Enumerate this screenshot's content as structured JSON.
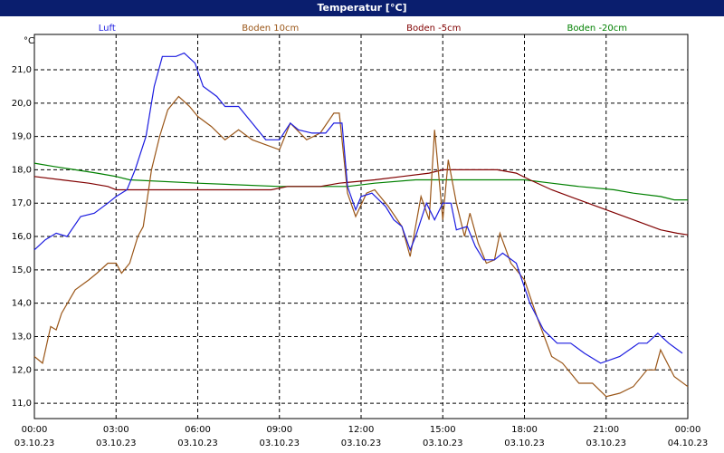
{
  "chart_data": {
    "type": "line",
    "title": "Temperatur [°C]",
    "y_unit": "°C",
    "xlim": [
      0,
      24
    ],
    "ylim": [
      10.54,
      22.06
    ],
    "grid": true,
    "xticks": [
      {
        "value": 0,
        "label": "00:00",
        "date": "03.10.23"
      },
      {
        "value": 3,
        "label": "03:00",
        "date": "03.10.23"
      },
      {
        "value": 6,
        "label": "06:00",
        "date": "03.10.23"
      },
      {
        "value": 9,
        "label": "09:00",
        "date": "03.10.23"
      },
      {
        "value": 12,
        "label": "12:00",
        "date": "03.10.23"
      },
      {
        "value": 15,
        "label": "15:00",
        "date": "03.10.23"
      },
      {
        "value": 18,
        "label": "18:00",
        "date": "03.10.23"
      },
      {
        "value": 21,
        "label": "21:00",
        "date": "03.10.23"
      },
      {
        "value": 24,
        "label": "00:00",
        "date": "04.10.23"
      }
    ],
    "yticks": [
      {
        "value": 11,
        "label": "11,0"
      },
      {
        "value": 12,
        "label": "12,0"
      },
      {
        "value": 13,
        "label": "13,0"
      },
      {
        "value": 14,
        "label": "14,0"
      },
      {
        "value": 15,
        "label": "15,0"
      },
      {
        "value": 16,
        "label": "16,0"
      },
      {
        "value": 17,
        "label": "17,0"
      },
      {
        "value": 18,
        "label": "18,0"
      },
      {
        "value": 19,
        "label": "19,0"
      },
      {
        "value": 20,
        "label": "20,0"
      },
      {
        "value": 21,
        "label": "21,0"
      }
    ],
    "series": [
      {
        "name": "Luft",
        "color": "#1c1ce0",
        "x": [
          0,
          0.4,
          0.8,
          1.2,
          1.7,
          2.2,
          2.7,
          3,
          3.4,
          3.7,
          4.1,
          4.4,
          4.7,
          5.2,
          5.5,
          5.9,
          6.2,
          6.7,
          7,
          7.5,
          8,
          8.5,
          9,
          9.4,
          9.7,
          10.2,
          10.7,
          11,
          11.3,
          11.5,
          11.8,
          12,
          12.4,
          12.9,
          13.2,
          13.5,
          13.8,
          14,
          14.4,
          14.7,
          15,
          15.3,
          15.5,
          15.9,
          16.2,
          16.5,
          16.9,
          17.2,
          17.7,
          18.2,
          18.7,
          19.2,
          19.7,
          20.2,
          20.8,
          21.5,
          22.2,
          22.5,
          22.9,
          23.3,
          23.8
        ],
        "values": [
          15.6,
          15.9,
          16.1,
          16.0,
          16.6,
          16.7,
          17.0,
          17.2,
          17.4,
          18.0,
          19.0,
          20.5,
          21.4,
          21.4,
          21.5,
          21.2,
          20.5,
          20.2,
          19.9,
          19.9,
          19.4,
          18.9,
          18.9,
          19.4,
          19.2,
          19.1,
          19.1,
          19.4,
          19.4,
          17.5,
          16.8,
          17.2,
          17.3,
          16.9,
          16.5,
          16.3,
          15.6,
          16.0,
          17.0,
          16.5,
          17.0,
          17.0,
          16.2,
          16.3,
          15.7,
          15.3,
          15.3,
          15.5,
          15.2,
          14.0,
          13.2,
          12.8,
          12.8,
          12.5,
          12.2,
          12.4,
          12.8,
          12.8,
          13.1,
          12.8,
          12.5
        ]
      },
      {
        "name": "Boden 10cm",
        "color": "#9a5618",
        "x": [
          0,
          0.3,
          0.6,
          0.8,
          1.0,
          1.5,
          2,
          2.3,
          2.7,
          3,
          3.2,
          3.5,
          3.8,
          4,
          4.3,
          4.6,
          4.9,
          5.3,
          5.7,
          6,
          6.5,
          7,
          7.5,
          8,
          9,
          9.4,
          10,
          10.5,
          11,
          11.2,
          11.5,
          11.8,
          12.2,
          12.5,
          13,
          13.5,
          13.8,
          14.2,
          14.5,
          14.7,
          15,
          15.2,
          15.5,
          15.8,
          16,
          16.3,
          16.6,
          16.9,
          17.1,
          17.5,
          18,
          18.5,
          19,
          19.4,
          20,
          20.5,
          21,
          21.5,
          22,
          22.5,
          22.8,
          23,
          23.5,
          24
        ],
        "values": [
          12.4,
          12.2,
          13.3,
          13.2,
          13.7,
          14.4,
          14.7,
          14.9,
          15.2,
          15.2,
          14.9,
          15.2,
          16.0,
          16.3,
          18.0,
          19.0,
          19.8,
          20.2,
          19.9,
          19.6,
          19.3,
          18.9,
          19.2,
          18.9,
          18.6,
          19.4,
          18.9,
          19.1,
          19.7,
          19.7,
          17.3,
          16.6,
          17.3,
          17.4,
          16.9,
          16.3,
          15.4,
          17.2,
          16.5,
          19.2,
          16.5,
          18.3,
          17.0,
          16.0,
          16.7,
          15.8,
          15.2,
          15.3,
          16.1,
          15.2,
          14.7,
          13.5,
          12.4,
          12.2,
          11.6,
          11.6,
          11.2,
          11.3,
          11.5,
          12.0,
          12.0,
          12.6,
          11.8,
          11.5
        ]
      },
      {
        "name": "Boden -5cm",
        "color": "#800000",
        "x": [
          0,
          1,
          2,
          2.7,
          3,
          8.7,
          9.3,
          10.5,
          11.2,
          12.5,
          13.5,
          14.5,
          15,
          17,
          17.7,
          18.2,
          19,
          20,
          21,
          22,
          23,
          23.6,
          24
        ],
        "values": [
          17.8,
          17.7,
          17.6,
          17.5,
          17.4,
          17.4,
          17.5,
          17.5,
          17.6,
          17.7,
          17.8,
          17.9,
          18.0,
          18.0,
          17.9,
          17.7,
          17.4,
          17.1,
          16.8,
          16.5,
          16.2,
          16.1,
          16.05
        ]
      },
      {
        "name": "Boden -20cm",
        "color": "#008000",
        "x": [
          0,
          0.7,
          1.5,
          2.3,
          3,
          3.5,
          6,
          9,
          11.5,
          12.5,
          14,
          18,
          19,
          20,
          21.3,
          22,
          23,
          23.5,
          24
        ],
        "values": [
          18.2,
          18.1,
          18.0,
          17.9,
          17.8,
          17.7,
          17.6,
          17.5,
          17.5,
          17.6,
          17.7,
          17.7,
          17.6,
          17.5,
          17.4,
          17.3,
          17.2,
          17.1,
          17.1
        ]
      }
    ]
  }
}
